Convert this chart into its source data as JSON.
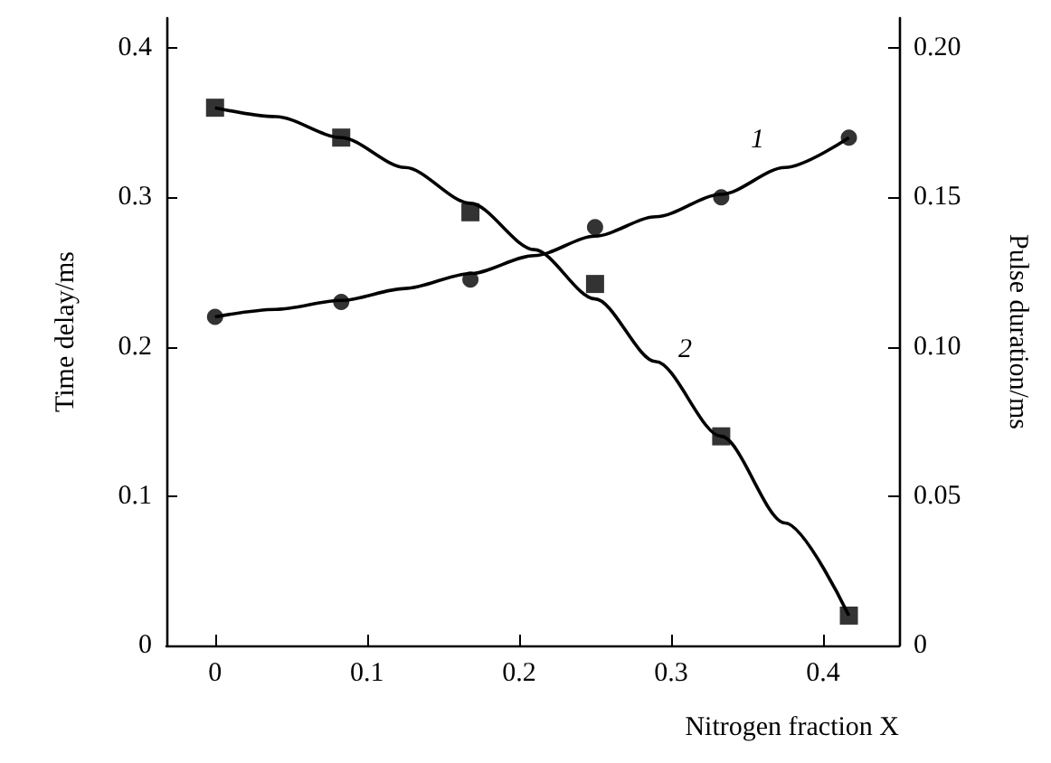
{
  "chart_data": {
    "type": "scatter",
    "xlabel": "Nitrogen fraction X",
    "ylabel": "Time delay/ms",
    "y2label": "Pulse duration/ms",
    "xlim": [
      -0.032,
      0.45
    ],
    "xticks": [
      0,
      0.1,
      0.2,
      0.3,
      0.4
    ],
    "ylim": [
      0,
      0.42
    ],
    "yticks": [
      0,
      0.1,
      0.2,
      0.3,
      0.4
    ],
    "y2lim": [
      0,
      0.21
    ],
    "y2ticks": [
      0,
      {
        "value": 0.05,
        "label": "0.05"
      },
      {
        "value": 0.1,
        "label": "0.10"
      },
      {
        "value": 0.15,
        "label": "0.15"
      },
      {
        "value": 0.2,
        "label": "0.20"
      }
    ],
    "grid": false,
    "series": [
      {
        "marker": "circle",
        "color": "#000000",
        "x": [
          0,
          0.083,
          0.168,
          0.25,
          0.333,
          0.417
        ],
        "values": [
          0.22,
          0.23,
          0.245,
          0.28,
          0.3,
          0.34
        ]
      },
      {
        "type": "line",
        "name": "1",
        "marker": "none",
        "color": "#000000",
        "x": [
          0,
          0.04,
          0.083,
          0.125,
          0.168,
          0.21,
          0.25,
          0.29,
          0.333,
          0.375,
          0.417
        ],
        "values": [
          0.22,
          0.225,
          0.231,
          0.239,
          0.249,
          0.261,
          0.274,
          0.287,
          0.302,
          0.32,
          0.34
        ]
      },
      {
        "marker": "square",
        "axis": "y2",
        "color": "#000000",
        "x": [
          0,
          0.083,
          0.168,
          0.25,
          0.333,
          0.417
        ],
        "values": [
          0.18,
          0.17,
          0.145,
          0.121,
          0.07,
          0.01
        ]
      },
      {
        "type": "line",
        "name": "2",
        "marker": "none",
        "axis": "y2",
        "color": "#000000",
        "x": [
          0,
          0.04,
          0.083,
          0.125,
          0.168,
          0.21,
          0.25,
          0.29,
          0.333,
          0.375,
          0.417
        ],
        "values": [
          0.18,
          0.177,
          0.17,
          0.16,
          0.148,
          0.1325,
          0.116,
          0.095,
          0.07,
          0.041,
          0.01
        ]
      }
    ]
  }
}
